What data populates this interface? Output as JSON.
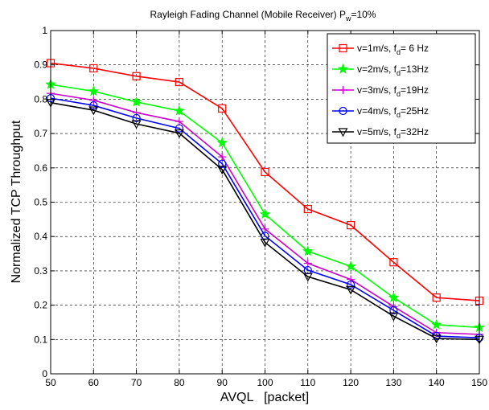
{
  "chart_data": {
    "type": "line",
    "title_main": "Rayleigh Fading Channel (Mobile Receiver) P",
    "title_sub": "w",
    "title_tail": "=10%",
    "xlabel": "AVQL   [packet]",
    "ylabel": "Normalized TCP Throughput",
    "xlim": [
      50,
      150
    ],
    "ylim": [
      0,
      1
    ],
    "x": [
      50,
      60,
      70,
      80,
      90,
      100,
      110,
      120,
      130,
      140,
      150
    ],
    "xticks": [
      "50",
      "60",
      "70",
      "80",
      "90",
      "100",
      "110",
      "120",
      "130",
      "140",
      "150"
    ],
    "yticks": [
      "0",
      "0.1",
      "0.2",
      "0.3",
      "0.4",
      "0.5",
      "0.6",
      "0.7",
      "0.8",
      "0.9",
      "1"
    ],
    "grid": true,
    "legend_position": "top-right",
    "series": [
      {
        "label_main": "v=1m/s, f",
        "label_sub": "d",
        "label_tail": "= 6 Hz",
        "color": "#ff0000",
        "marker": "square",
        "values": [
          0.905,
          0.89,
          0.867,
          0.85,
          0.773,
          0.588,
          0.48,
          0.433,
          0.325,
          0.222,
          0.213
        ]
      },
      {
        "label_main": "v=2m/s, f",
        "label_sub": "d",
        "label_tail": "=13Hz",
        "color": "#00ff00",
        "marker": "star",
        "values": [
          0.843,
          0.823,
          0.792,
          0.766,
          0.673,
          0.465,
          0.357,
          0.313,
          0.222,
          0.143,
          0.135
        ]
      },
      {
        "label_main": "v=3m/s, f",
        "label_sub": "d",
        "label_tail": "=19Hz",
        "color": "#cc00cc",
        "marker": "plus",
        "values": [
          0.817,
          0.797,
          0.761,
          0.735,
          0.632,
          0.422,
          0.322,
          0.275,
          0.196,
          0.12,
          0.115
        ]
      },
      {
        "label_main": "v=4m/s, f",
        "label_sub": "d",
        "label_tail": "=25Hz",
        "color": "#0000ff",
        "marker": "circle",
        "values": [
          0.803,
          0.782,
          0.745,
          0.715,
          0.612,
          0.402,
          0.302,
          0.26,
          0.185,
          0.11,
          0.105
        ]
      },
      {
        "label_main": "v=5m/s, f",
        "label_sub": "d",
        "label_tail": "=32Hz",
        "color": "#000000",
        "marker": "triangle-down",
        "values": [
          0.79,
          0.768,
          0.728,
          0.701,
          0.595,
          0.383,
          0.283,
          0.245,
          0.168,
          0.103,
          0.1
        ]
      }
    ]
  }
}
